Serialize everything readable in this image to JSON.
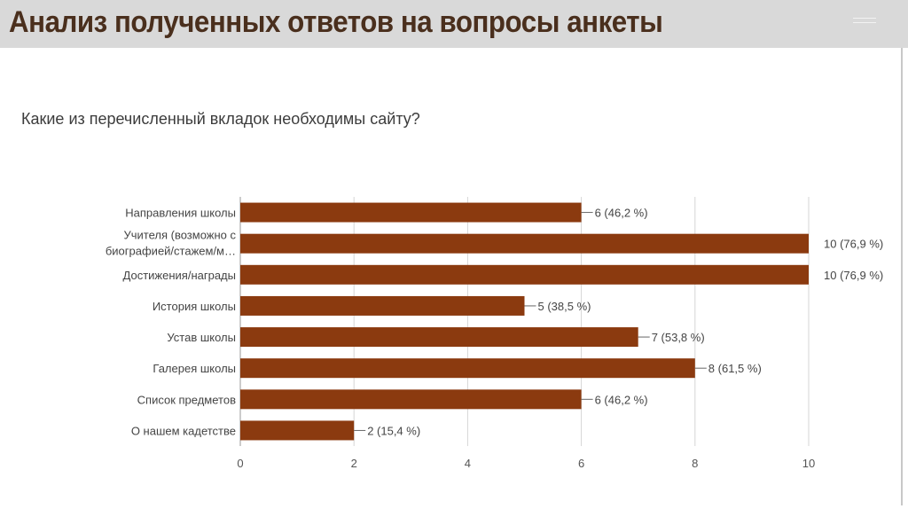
{
  "slide": {
    "title": "Анализ полученных ответов на вопросы анкеты"
  },
  "chart_data": {
    "type": "bar",
    "orientation": "horizontal",
    "title": "Какие из перечисленный вкладок необходимы сайту?",
    "categories": [
      "Направления школы",
      "Учителя (возможно с биографией/стажем/м…",
      "Достижения/награды",
      "История школы",
      "Устав школы",
      "Галерея школы",
      "Список предметов",
      "О нашем кадетстве"
    ],
    "category_lines": [
      [
        "Направления школы"
      ],
      [
        "Учителя (возможно с",
        "биографией/стажем/м…"
      ],
      [
        "Достижения/награды"
      ],
      [
        "История школы"
      ],
      [
        "Устав школы"
      ],
      [
        "Галерея школы"
      ],
      [
        "Список предметов"
      ],
      [
        "О нашем кадетстве"
      ]
    ],
    "values": [
      6,
      10,
      10,
      5,
      7,
      8,
      6,
      2
    ],
    "data_labels": [
      "6 (46,2 %)",
      "10 (76,9 %)",
      "10 (76,9 %)",
      "5 (38,5 %)",
      "7 (53,8 %)",
      "8 (61,5 %)",
      "6 (46,2 %)",
      "2 (15,4 %)"
    ],
    "xlim": [
      0,
      10
    ],
    "xticks": [
      "0",
      "2",
      "4",
      "6",
      "8",
      "10"
    ],
    "grid": true,
    "bar_color": "#8b3a0f",
    "xlabel": "",
    "ylabel": ""
  }
}
